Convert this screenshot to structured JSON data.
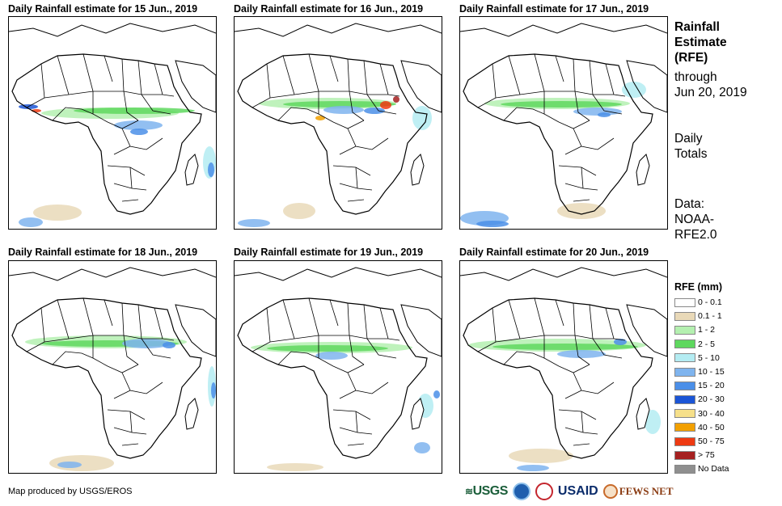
{
  "panels": [
    {
      "title": "Daily Rainfall estimate for 15 Jun., 2019"
    },
    {
      "title": "Daily Rainfall estimate for 16 Jun., 2019"
    },
    {
      "title": "Daily Rainfall estimate for 17 Jun., 2019"
    },
    {
      "title": "Daily Rainfall estimate for 18 Jun., 2019"
    },
    {
      "title": "Daily Rainfall estimate for 19 Jun., 2019"
    },
    {
      "title": "Daily Rainfall estimate for 20 Jun., 2019"
    }
  ],
  "side": {
    "title_line1": "Rainfall",
    "title_line2": "Estimate",
    "title_line3": "(RFE)",
    "through": "through",
    "date": "Jun 20, 2019",
    "daily1": "Daily",
    "daily2": "Totals",
    "data1": "Data:",
    "data2": "NOAA-",
    "data3": "RFE2.0"
  },
  "legend": {
    "title": "RFE (mm)",
    "items": [
      {
        "label": "0 - 0.1",
        "color": "#ffffff"
      },
      {
        "label": "0.1 - 1",
        "color": "#e9d9b8"
      },
      {
        "label": "1 - 2",
        "color": "#b4f0b0"
      },
      {
        "label": "2 - 5",
        "color": "#5fd85f"
      },
      {
        "label": "5 - 10",
        "color": "#b4ecf2"
      },
      {
        "label": "10 - 15",
        "color": "#7fb4ee"
      },
      {
        "label": "15 - 20",
        "color": "#4b8fe8"
      },
      {
        "label": "20 - 30",
        "color": "#1b55d6"
      },
      {
        "label": "30 - 40",
        "color": "#f6e08a"
      },
      {
        "label": "40 - 50",
        "color": "#f2a000"
      },
      {
        "label": "50 - 75",
        "color": "#ee3a12"
      },
      {
        "label": "> 75",
        "color": "#a52020"
      },
      {
        "label": "No Data",
        "color": "#8f8f8f"
      }
    ]
  },
  "credit": "Map produced by USGS/EROS",
  "logos": {
    "usgs": "USGS",
    "usaid": "USAID",
    "fews": "FEWS NET"
  }
}
